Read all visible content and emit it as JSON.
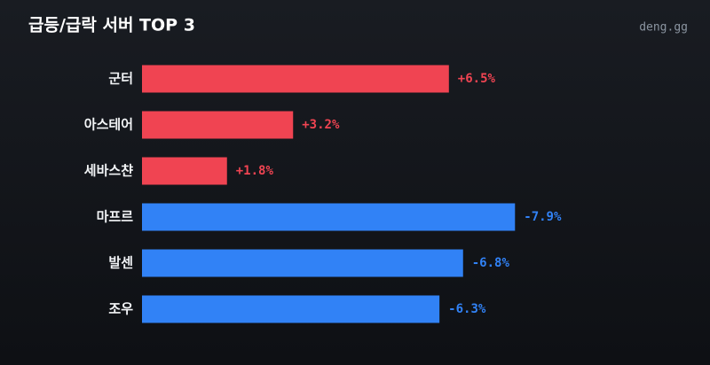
{
  "chart_data": {
    "type": "bar",
    "orientation": "horizontal",
    "title": "급등/급락 서버 TOP 3",
    "source": "deng.gg",
    "categories": [
      "군터",
      "아스테어",
      "세바스챤",
      "마프르",
      "발센",
      "조우"
    ],
    "values": [
      6.5,
      3.2,
      1.8,
      -7.9,
      -6.8,
      -6.3
    ],
    "value_labels": [
      "+6.5%",
      "+3.2%",
      "+1.8%",
      "-7.9%",
      "-6.8%",
      "-6.3%"
    ],
    "colors": [
      "#f04452",
      "#f04452",
      "#f04452",
      "#3182f6",
      "#3182f6",
      "#3182f6"
    ]
  }
}
